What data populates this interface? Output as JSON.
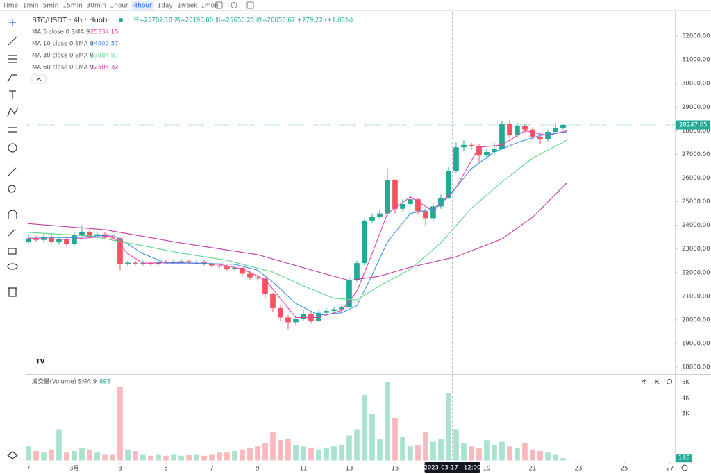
{
  "toolbar": {
    "intervals": [
      "Time",
      "1min",
      "5min",
      "15min",
      "30min",
      "1hour",
      "4hour",
      "1day",
      "1week",
      "1mon"
    ],
    "active": 6
  },
  "chart_data": {
    "type": "candlestick",
    "title": "BTC/USDT · 4h · Huobi",
    "ohlc_legend": [
      "开=25782.18",
      "高=26195.00",
      "低=25656.25",
      "收=26053.67",
      "+279.22 (+1.08%)"
    ],
    "up_color": "#22ab94",
    "down_color": "#f7525f",
    "volume_up_color": "#a9e2cf",
    "volume_down_color": "#f9b9bd",
    "xlim": [
      -0.27,
      84.64
    ],
    "xticks": [
      {
        "value": 0,
        "label": "7"
      },
      {
        "value": 6,
        "label": "3月"
      },
      {
        "value": 12,
        "label": "3"
      },
      {
        "value": 18,
        "label": "5"
      },
      {
        "value": 24,
        "label": "7"
      },
      {
        "value": 30,
        "label": "9"
      },
      {
        "value": 36,
        "label": "11"
      },
      {
        "value": 42,
        "label": "13"
      },
      {
        "value": 48,
        "label": "15"
      },
      {
        "value": 54,
        "label": "17"
      },
      {
        "value": 60,
        "label": "19"
      },
      {
        "value": 66,
        "label": "21"
      },
      {
        "value": 72,
        "label": "23"
      },
      {
        "value": 78,
        "label": "25"
      },
      {
        "value": 84,
        "label": "27"
      }
    ],
    "ylim": [
      17738,
      33000
    ],
    "yticks": [
      {
        "value": 18000,
        "label": "18000.00"
      },
      {
        "value": 19000,
        "label": "19000.00"
      },
      {
        "value": 20000,
        "label": "20000.00"
      },
      {
        "value": 21000,
        "label": "21000.00"
      },
      {
        "value": 22000,
        "label": "22000.00"
      },
      {
        "value": 23000,
        "label": "23000.00"
      },
      {
        "value": 24000,
        "label": "24000.00"
      },
      {
        "value": 25000,
        "label": "25000.00"
      },
      {
        "value": 26000,
        "label": "26000.00"
      },
      {
        "value": 27000,
        "label": "27000.00"
      },
      {
        "value": 28000,
        "label": "28000.00"
      },
      {
        "value": 29000,
        "label": "29000.00"
      },
      {
        "value": 30000,
        "label": "30000.00"
      },
      {
        "value": 31000,
        "label": "31000.00"
      },
      {
        "value": 32000,
        "label": "32000.00"
      }
    ],
    "open": [
      23300,
      23450,
      23380,
      23520,
      23300,
      23410,
      23200,
      23580,
      23700,
      23550,
      23620,
      23480,
      23450,
      22350,
      22420,
      22380,
      22400,
      22360,
      22450,
      22420,
      22470,
      22480,
      22430,
      22460,
      22380,
      22300,
      22250,
      22150,
      22200,
      21950,
      21800,
      21750,
      21100,
      20500,
      20100,
      19900,
      20050,
      20250,
      19950,
      20300,
      20380,
      20450,
      20550,
      21700,
      22400,
      24200,
      24350,
      24500,
      25900,
      24700,
      24900,
      25100,
      24600,
      24300,
      24800,
      25150,
      26300,
      27300,
      27400,
      27350,
      26950,
      27100,
      27250,
      28300,
      27800,
      28200,
      28050,
      27750,
      27650,
      27950,
      28100
    ],
    "high": [
      23600,
      23560,
      23640,
      23620,
      23520,
      23500,
      23700,
      24000,
      23800,
      23720,
      23700,
      23560,
      23500,
      22500,
      22500,
      22500,
      22480,
      22550,
      22530,
      22560,
      22580,
      22560,
      22540,
      22520,
      22450,
      22380,
      22330,
      22300,
      22280,
      22050,
      21900,
      21800,
      21150,
      20600,
      20200,
      20150,
      20450,
      20350,
      20400,
      20480,
      20550,
      20650,
      21800,
      22500,
      24300,
      24500,
      24650,
      26400,
      25950,
      25100,
      25250,
      25150,
      24700,
      24900,
      25300,
      26450,
      27500,
      27600,
      27500,
      27450,
      27250,
      27500,
      28400,
      28450,
      28350,
      28300,
      28150,
      27850,
      28050,
      28350,
      28300
    ],
    "low": [
      23200,
      23300,
      23300,
      23200,
      23180,
      23100,
      23150,
      23500,
      23450,
      23450,
      23400,
      23350,
      22100,
      22250,
      22300,
      22300,
      22280,
      22300,
      22350,
      22350,
      22400,
      22350,
      22350,
      22300,
      22220,
      22150,
      22080,
      22050,
      21880,
      21700,
      21650,
      20900,
      20350,
      19950,
      19600,
      19800,
      19950,
      19850,
      19900,
      20200,
      20300,
      20350,
      20500,
      21600,
      22300,
      24100,
      24250,
      24400,
      24500,
      24550,
      24800,
      24450,
      24000,
      24200,
      24700,
      25100,
      26200,
      27150,
      27200,
      26700,
      26800,
      26950,
      27200,
      27700,
      27700,
      27900,
      27600,
      27450,
      27550,
      27900,
      28050
    ],
    "close": [
      23450,
      23380,
      23520,
      23300,
      23410,
      23200,
      23580,
      23700,
      23550,
      23620,
      23480,
      23450,
      22350,
      22420,
      22380,
      22400,
      22360,
      22450,
      22420,
      22470,
      22480,
      22430,
      22460,
      22380,
      22300,
      22250,
      22150,
      22200,
      21950,
      21800,
      21750,
      21100,
      20500,
      20100,
      19900,
      20050,
      20250,
      19950,
      20300,
      20380,
      20450,
      20550,
      21700,
      22400,
      24200,
      24350,
      24500,
      25900,
      24700,
      24900,
      25100,
      24600,
      24300,
      24800,
      25150,
      26300,
      27300,
      27400,
      27350,
      26950,
      27100,
      27250,
      28300,
      27800,
      28200,
      28050,
      27750,
      27650,
      27950,
      28100,
      28247.05
    ],
    "series": [
      {
        "name": "MA 5 close 0 SMA 9",
        "last": 25334.15,
        "color": "#e63fa9",
        "x": [
          0,
          5,
          11,
          13,
          15,
          20,
          25,
          28,
          31,
          33,
          35,
          38,
          41,
          43,
          45,
          47,
          50,
          53,
          56,
          59,
          62,
          65,
          68,
          70.5
        ],
        "values": [
          23450,
          23400,
          23550,
          22800,
          22400,
          22420,
          22350,
          22150,
          21700,
          20900,
          20100,
          20100,
          20400,
          21200,
          22800,
          24500,
          25200,
          24600,
          25600,
          27300,
          27400,
          28000,
          27800,
          28000
        ]
      },
      {
        "name": "MA 10 close 0 SMA 9",
        "last": 24902.57,
        "color": "#3d8fe6",
        "x": [
          0,
          6,
          11,
          15,
          18,
          22,
          27,
          30,
          32,
          35,
          38,
          41,
          43,
          45,
          47,
          50,
          53,
          55,
          58,
          61,
          64,
          67,
          70.5
        ],
        "values": [
          23500,
          23480,
          23600,
          22800,
          22400,
          22400,
          22350,
          22100,
          21600,
          20700,
          20200,
          20300,
          20600,
          21900,
          23300,
          24500,
          24700,
          25200,
          26400,
          27100,
          27500,
          27800,
          27950
        ]
      },
      {
        "name": "MA 30 close 0 SMA 9",
        "last": 23984.87,
        "color": "#5fd68a",
        "x": [
          0,
          8,
          14,
          20,
          26,
          32,
          36,
          40,
          43,
          46,
          50,
          54,
          58,
          62,
          66,
          70.5
        ],
        "values": [
          23700,
          23550,
          23200,
          22820,
          22520,
          22020,
          21440,
          20910,
          20850,
          21440,
          22140,
          23260,
          24720,
          25840,
          26840,
          27600
        ]
      },
      {
        "name": "MA 60 close 0 SMA 9",
        "last": 22505.32,
        "color": "#c43aa6",
        "x": [
          0,
          10,
          20,
          30,
          38,
          42,
          46,
          50,
          56,
          62,
          66,
          70.5
        ],
        "values": [
          24070,
          23810,
          23250,
          22760,
          22020,
          21670,
          21850,
          22230,
          22670,
          23430,
          24340,
          25800
        ]
      }
    ],
    "volume_legend": "成交量(Volume) SMA 9",
    "volume_legend_value": 893,
    "volume": [
      900,
      600,
      500,
      700,
      2000,
      500,
      600,
      800,
      700,
      500,
      400,
      400,
      4700,
      700,
      600,
      400,
      300,
      400,
      300,
      400,
      300,
      350,
      400,
      300,
      400,
      500,
      500,
      600,
      700,
      800,
      900,
      1100,
      1800,
      1300,
      1400,
      1000,
      900,
      800,
      700,
      800,
      900,
      1000,
      1600,
      2000,
      4200,
      3000,
      1400,
      5000,
      2700,
      1500,
      900,
      1000,
      1800,
      1200,
      1400,
      4300,
      2000,
      1100,
      900,
      800,
      1300,
      1000,
      1200,
      900,
      800,
      1100,
      700,
      600,
      500,
      400,
      146
    ],
    "volume_ylim": [
      0,
      5400
    ],
    "volume_yticks": [
      {
        "value": 3000,
        "label": "3K"
      },
      {
        "value": 4000,
        "label": "4K"
      },
      {
        "value": 5000,
        "label": "5K"
      }
    ],
    "crosshair": {
      "x": 55.5,
      "label": "2023-03-17   12:00"
    }
  }
}
